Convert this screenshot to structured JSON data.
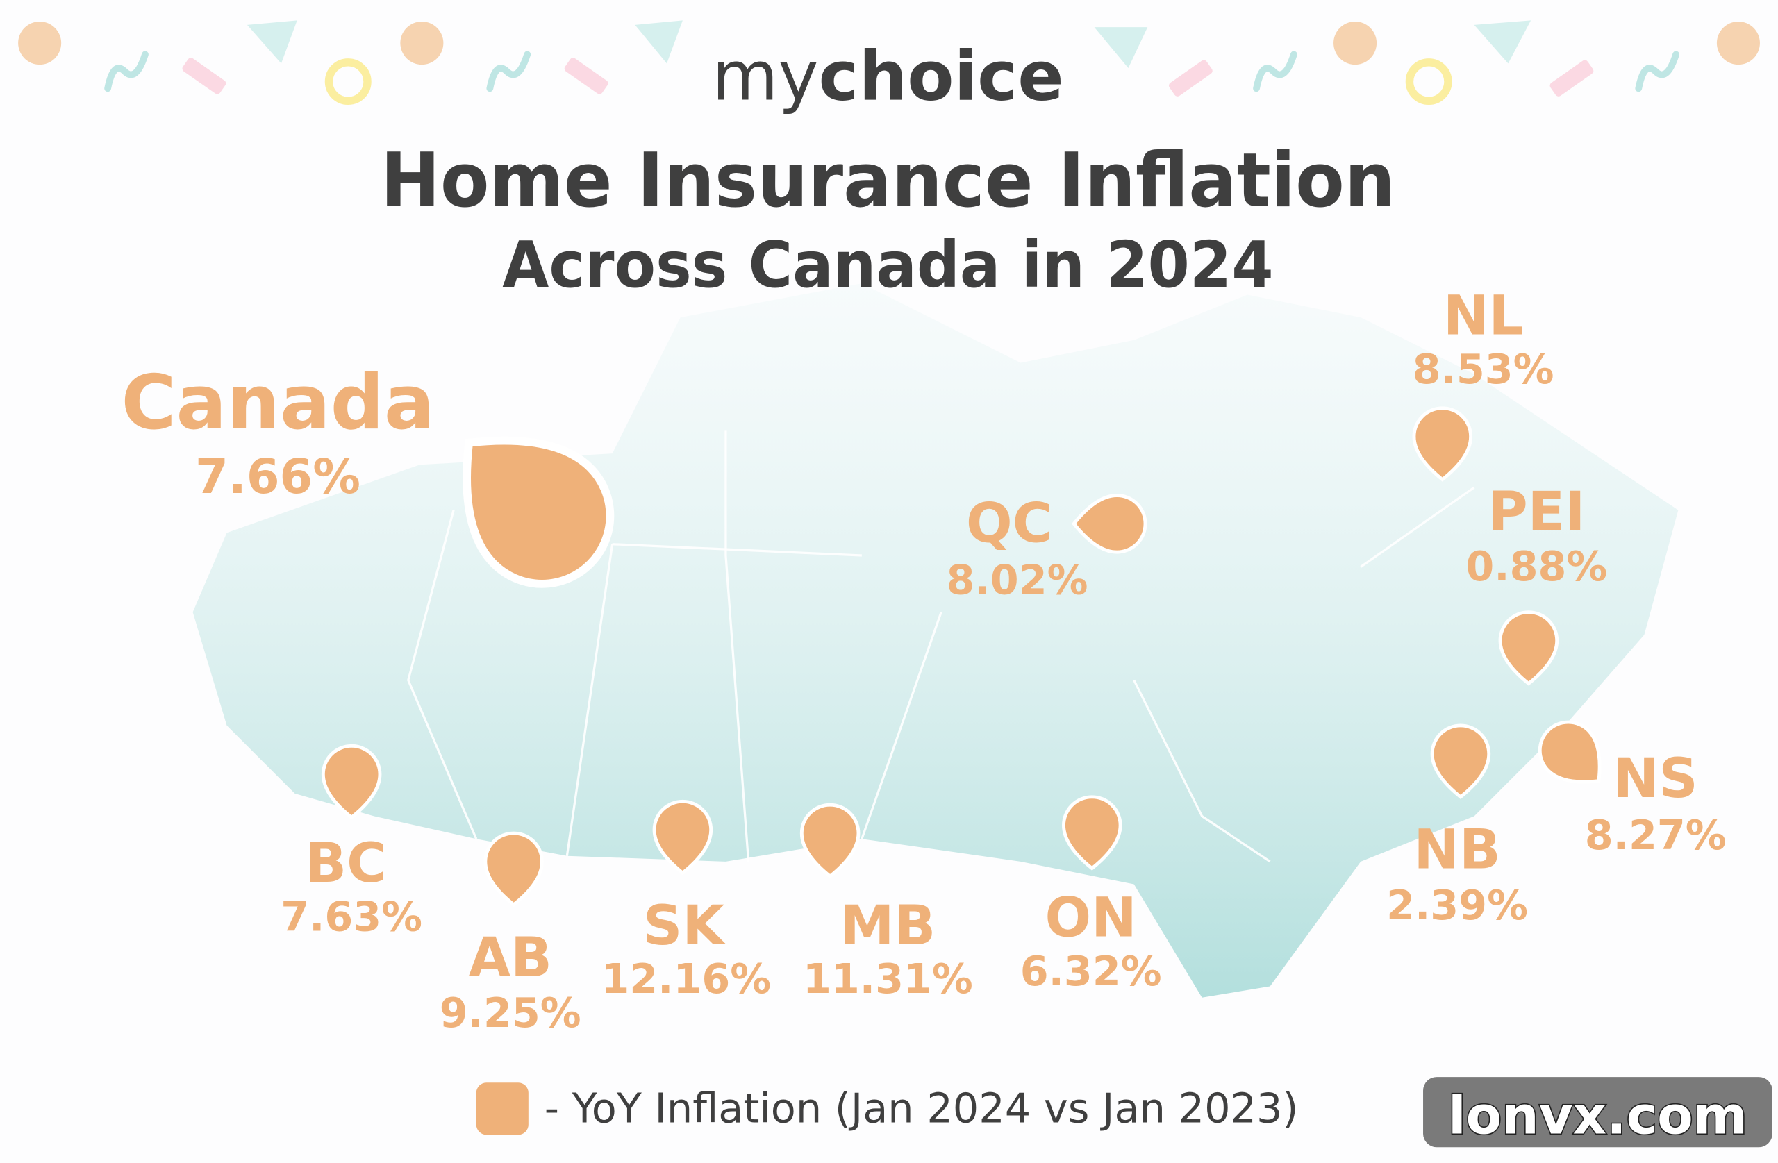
{
  "logo": {
    "prefix": "my",
    "brand": "choice"
  },
  "title": "Home Insurance Inflation",
  "subtitle": "Across Canada in 2024",
  "regions": [
    {
      "label": "Canada",
      "value": "7.66%"
    },
    {
      "label": "NL",
      "value": "8.53%"
    },
    {
      "label": "QC",
      "value": "8.02%"
    },
    {
      "label": "PEI",
      "value": "0.88%"
    },
    {
      "label": "NS",
      "value": "8.27%"
    },
    {
      "label": "NB",
      "value": "2.39%"
    },
    {
      "label": "ON",
      "value": "6.32%"
    },
    {
      "label": "MB",
      "value": "11.31%"
    },
    {
      "label": "SK",
      "value": "12.16%"
    },
    {
      "label": "AB",
      "value": "9.25%"
    },
    {
      "label": "BC",
      "value": "7.63%"
    }
  ],
  "legend": "- YoY Inflation (Jan 2024 vs Jan 2023)",
  "watermark": "lonvx.com"
}
